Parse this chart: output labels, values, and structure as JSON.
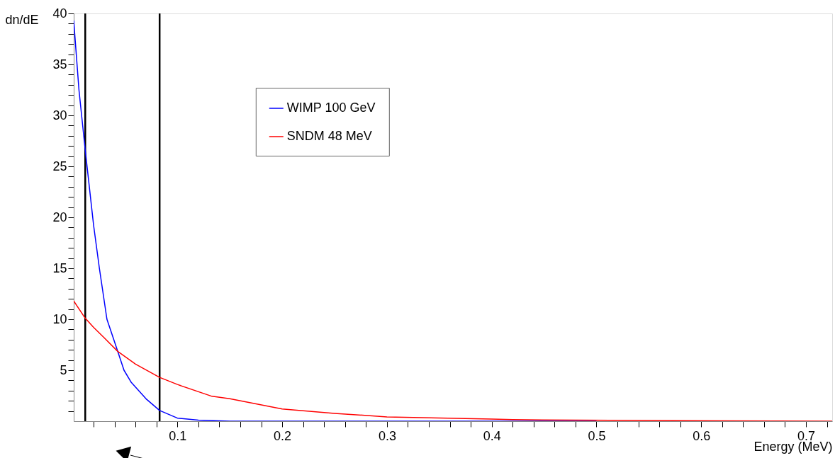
{
  "chart_data": {
    "type": "line",
    "xlabel": "Energy (MeV)",
    "ylabel": "dn/dE",
    "xlim": [
      0.001,
      0.725
    ],
    "ylim": [
      0,
      40
    ],
    "xticks": [
      {
        "value": 0.02,
        "label": null
      },
      {
        "value": 0.04,
        "label": null
      },
      {
        "value": 0.06,
        "label": null
      },
      {
        "value": 0.08,
        "label": null
      },
      0.1,
      {
        "value": 0.12,
        "label": null
      },
      {
        "value": 0.14,
        "label": null
      },
      {
        "value": 0.16,
        "label": null
      },
      {
        "value": 0.18,
        "label": null
      },
      0.2,
      {
        "value": 0.22,
        "label": null
      },
      {
        "value": 0.24,
        "label": null
      },
      {
        "value": 0.26,
        "label": null
      },
      {
        "value": 0.28,
        "label": null
      },
      0.3,
      {
        "value": 0.32,
        "label": null
      },
      {
        "value": 0.34,
        "label": null
      },
      {
        "value": 0.36,
        "label": null
      },
      {
        "value": 0.38,
        "label": null
      },
      0.4,
      {
        "value": 0.42,
        "label": null
      },
      {
        "value": 0.44,
        "label": null
      },
      {
        "value": 0.46,
        "label": null
      },
      {
        "value": 0.48,
        "label": null
      },
      0.5,
      {
        "value": 0.52,
        "label": null
      },
      {
        "value": 0.54,
        "label": null
      },
      {
        "value": 0.56,
        "label": null
      },
      {
        "value": 0.58,
        "label": null
      },
      0.6,
      {
        "value": 0.62,
        "label": null
      },
      {
        "value": 0.64,
        "label": null
      },
      {
        "value": 0.66,
        "label": null
      },
      {
        "value": 0.68,
        "label": null
      },
      0.7,
      {
        "value": 0.72,
        "label": null
      }
    ],
    "yticks": [
      {
        "value": 1,
        "label": null
      },
      {
        "value": 2,
        "label": null
      },
      {
        "value": 3,
        "label": null
      },
      {
        "value": 4,
        "label": null
      },
      5,
      {
        "value": 6,
        "label": null
      },
      {
        "value": 7,
        "label": null
      },
      {
        "value": 8,
        "label": null
      },
      {
        "value": 9,
        "label": null
      },
      10,
      {
        "value": 11,
        "label": null
      },
      {
        "value": 12,
        "label": null
      },
      {
        "value": 13,
        "label": null
      },
      {
        "value": 14,
        "label": null
      },
      15,
      {
        "value": 16,
        "label": null
      },
      {
        "value": 17,
        "label": null
      },
      {
        "value": 18,
        "label": null
      },
      {
        "value": 19,
        "label": null
      },
      20,
      {
        "value": 21,
        "label": null
      },
      {
        "value": 22,
        "label": null
      },
      {
        "value": 23,
        "label": null
      },
      {
        "value": 24,
        "label": null
      },
      25,
      {
        "value": 26,
        "label": null
      },
      {
        "value": 27,
        "label": null
      },
      {
        "value": 28,
        "label": null
      },
      {
        "value": 29,
        "label": null
      },
      30,
      {
        "value": 31,
        "label": null
      },
      {
        "value": 32,
        "label": null
      },
      {
        "value": 33,
        "label": null
      },
      {
        "value": 34,
        "label": null
      },
      35,
      {
        "value": 36,
        "label": null
      },
      {
        "value": 37,
        "label": null
      },
      {
        "value": 38,
        "label": null
      },
      {
        "value": 39,
        "label": null
      },
      40
    ],
    "grid": false,
    "legend": "top",
    "marker": "none",
    "line_style": "solid",
    "series": [
      {
        "name": "WIMP 100 GeV",
        "color": "#0000ff",
        "x": [
          0.001,
          0.006,
          0.012,
          0.02,
          0.0255,
          0.0327,
          0.043,
          0.049,
          0.056,
          0.07,
          0.083,
          0.1,
          0.12,
          0.15,
          0.5
        ],
        "values": [
          39.3,
          32.5,
          26.6,
          19.2,
          15,
          10,
          6.85,
          5,
          3.8,
          2.2,
          1.05,
          0.3,
          0.1,
          0,
          0
        ]
      },
      {
        "name": "SNDM 48 MeV",
        "color": "#ff0000",
        "x": [
          0.001,
          0.012,
          0.02,
          0.03,
          0.043,
          0.06,
          0.083,
          0.1,
          0.133,
          0.15,
          0.2,
          0.25,
          0.3,
          0.4,
          0.42,
          0.48,
          0.58,
          0.725
        ],
        "values": [
          11.8,
          10.1,
          9.2,
          8.2,
          6.85,
          5.6,
          4.3,
          3.6,
          2.44,
          2.2,
          1.2,
          0.77,
          0.42,
          0.2,
          0.15,
          0.1,
          0.05,
          0
        ]
      }
    ],
    "ref_lines": [
      {
        "axis": "x",
        "value": 0.012,
        "color": "#000000"
      },
      {
        "axis": "x",
        "value": 0.083,
        "color": "#000000"
      }
    ]
  }
}
